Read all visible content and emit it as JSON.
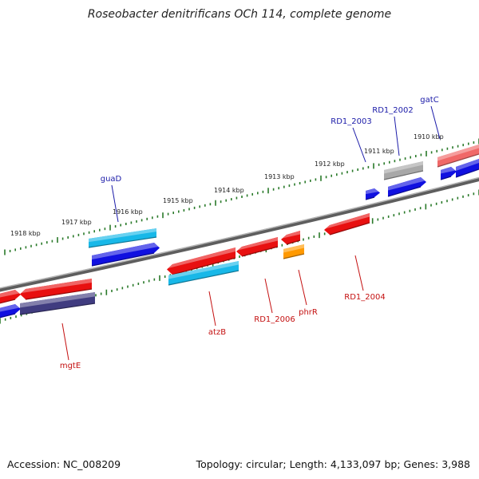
{
  "title": "Roseobacter denitrificans OCh 114, complete genome",
  "footer": {
    "accession": "Accession: NC_008209",
    "summary": "Topology: circular; Length: 4,133,097 bp; Genes: 3,988"
  },
  "colors": {
    "backbone": "#6f6f6f",
    "tick": "#2a7a2a",
    "forward_label": "#1a1aa8",
    "reverse_label": "#c41010",
    "red": "#e81010",
    "blue": "#1010e0",
    "cyan": "#18b8e8",
    "gray": "#a8a8a8",
    "orange": "#ff9900",
    "navy": "#403c80",
    "pink": "#f06868"
  },
  "tick_labels": [
    "1918 kbp",
    "1917 kbp",
    "1916 kbp",
    "1915 kbp",
    "1914 kbp",
    "1913 kbp",
    "1912 kbp",
    "1911 kbp",
    "1910 kbp"
  ],
  "gene_labels": {
    "forward": [
      "guaD",
      "RD1_2003",
      "RD1_2002",
      "gatC"
    ],
    "reverse": [
      "mgtE",
      "atzB",
      "RD1_2006",
      "phrR",
      "RD1_2004"
    ]
  }
}
